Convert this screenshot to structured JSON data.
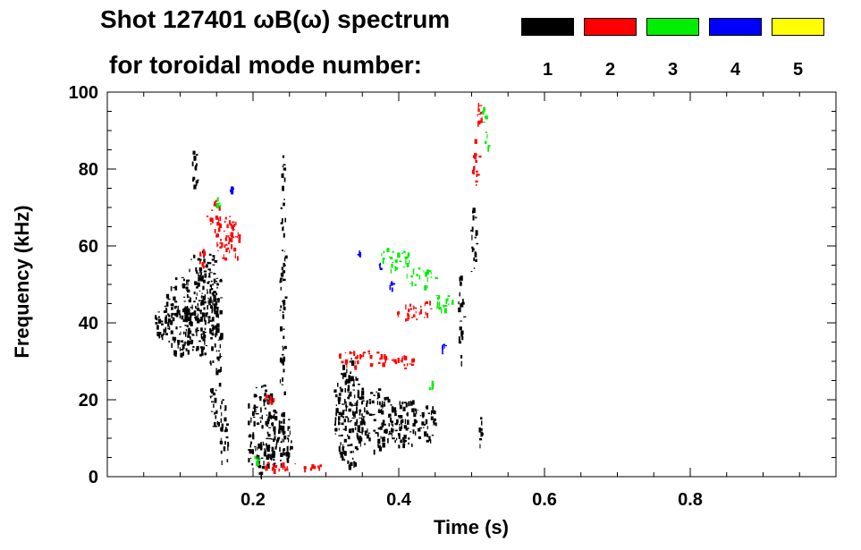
{
  "chart_data": {
    "type": "heatmap",
    "title_line1": "Shot 127401 ωB(ω) spectrum",
    "title_line2": "for toroidal mode number:",
    "xlabel": "Time (s)",
    "ylabel": "Frequency (kHz)",
    "xlim": [
      0.0,
      1.0
    ],
    "ylim": [
      0,
      100
    ],
    "x_ticks": [
      0.2,
      0.4,
      0.6,
      0.8
    ],
    "x_tick_labels": [
      "0.2",
      "0.4",
      "0.6",
      "0.8"
    ],
    "y_ticks": [
      0,
      20,
      40,
      60,
      80,
      100
    ],
    "y_tick_labels": [
      "0",
      "20",
      "40",
      "60",
      "80",
      "100"
    ],
    "legend": [
      {
        "n": "1",
        "color": "#000000"
      },
      {
        "n": "2",
        "color": "#ff0000"
      },
      {
        "n": "3",
        "color": "#00ee00"
      },
      {
        "n": "4",
        "color": "#0000ff"
      },
      {
        "n": "5",
        "color": "#ffff00"
      }
    ],
    "series": [
      {
        "name": "n=1",
        "color": "#000000",
        "blobs": [
          {
            "t": 0.075,
            "f": 40,
            "dt": 0.012,
            "df": 4
          },
          {
            "t": 0.1,
            "f": 42,
            "dt": 0.022,
            "df": 10
          },
          {
            "t": 0.125,
            "f": 45,
            "dt": 0.02,
            "df": 14
          },
          {
            "t": 0.14,
            "f": 48,
            "dt": 0.015,
            "df": 10
          },
          {
            "t": 0.148,
            "f": 30,
            "dt": 0.008,
            "df": 18
          },
          {
            "t": 0.12,
            "f": 82,
            "dt": 0.004,
            "df": 8
          },
          {
            "t": 0.16,
            "f": 12,
            "dt": 0.006,
            "df": 10
          },
          {
            "t": 0.21,
            "f": 12,
            "dt": 0.02,
            "df": 12
          },
          {
            "t": 0.235,
            "f": 10,
            "dt": 0.018,
            "df": 7
          },
          {
            "t": 0.24,
            "f": 45,
            "dt": 0.004,
            "df": 40
          },
          {
            "t": 0.33,
            "f": 17,
            "dt": 0.02,
            "df": 14
          },
          {
            "t": 0.365,
            "f": 15,
            "dt": 0.03,
            "df": 8
          },
          {
            "t": 0.41,
            "f": 14,
            "dt": 0.025,
            "df": 6
          },
          {
            "t": 0.44,
            "f": 14,
            "dt": 0.01,
            "df": 5
          },
          {
            "t": 0.485,
            "f": 42,
            "dt": 0.004,
            "df": 12
          },
          {
            "t": 0.502,
            "f": 60,
            "dt": 0.004,
            "df": 10
          },
          {
            "t": 0.51,
            "f": 12,
            "dt": 0.004,
            "df": 4
          }
        ]
      },
      {
        "name": "n=2",
        "color": "#ff0000",
        "blobs": [
          {
            "t": 0.145,
            "f": 68,
            "dt": 0.01,
            "df": 4
          },
          {
            "t": 0.16,
            "f": 63,
            "dt": 0.012,
            "df": 6
          },
          {
            "t": 0.175,
            "f": 62,
            "dt": 0.006,
            "df": 5
          },
          {
            "t": 0.13,
            "f": 57,
            "dt": 0.006,
            "df": 3
          },
          {
            "t": 0.35,
            "f": 31,
            "dt": 0.035,
            "df": 2
          },
          {
            "t": 0.4,
            "f": 30,
            "dt": 0.02,
            "df": 2
          },
          {
            "t": 0.42,
            "f": 43,
            "dt": 0.025,
            "df": 2
          },
          {
            "t": 0.44,
            "f": 44,
            "dt": 0.006,
            "df": 2
          },
          {
            "t": 0.505,
            "f": 82,
            "dt": 0.005,
            "df": 6
          },
          {
            "t": 0.51,
            "f": 93,
            "dt": 0.004,
            "df": 5
          },
          {
            "t": 0.25,
            "f": 3,
            "dt": 0.05,
            "df": 1
          },
          {
            "t": 0.22,
            "f": 20,
            "dt": 0.008,
            "df": 2
          }
        ]
      },
      {
        "name": "n=3",
        "color": "#00ee00",
        "blobs": [
          {
            "t": 0.395,
            "f": 57,
            "dt": 0.02,
            "df": 3
          },
          {
            "t": 0.43,
            "f": 52,
            "dt": 0.02,
            "df": 2.5
          },
          {
            "t": 0.46,
            "f": 46,
            "dt": 0.015,
            "df": 2.5
          },
          {
            "t": 0.15,
            "f": 72,
            "dt": 0.004,
            "df": 2
          },
          {
            "t": 0.515,
            "f": 95,
            "dt": 0.004,
            "df": 3
          },
          {
            "t": 0.52,
            "f": 87,
            "dt": 0.003,
            "df": 3
          },
          {
            "t": 0.205,
            "f": 5,
            "dt": 0.005,
            "df": 1.5
          },
          {
            "t": 0.445,
            "f": 23,
            "dt": 0.005,
            "df": 2
          }
        ]
      },
      {
        "name": "n=4",
        "color": "#0000ff",
        "blobs": [
          {
            "t": 0.345,
            "f": 58,
            "dt": 0.003,
            "df": 1
          },
          {
            "t": 0.375,
            "f": 55,
            "dt": 0.003,
            "df": 1
          },
          {
            "t": 0.39,
            "f": 50,
            "dt": 0.003,
            "df": 1
          },
          {
            "t": 0.17,
            "f": 75,
            "dt": 0.003,
            "df": 1
          },
          {
            "t": 0.46,
            "f": 34,
            "dt": 0.002,
            "df": 1
          }
        ]
      },
      {
        "name": "n=5",
        "color": "#ffff00",
        "blobs": []
      }
    ]
  }
}
